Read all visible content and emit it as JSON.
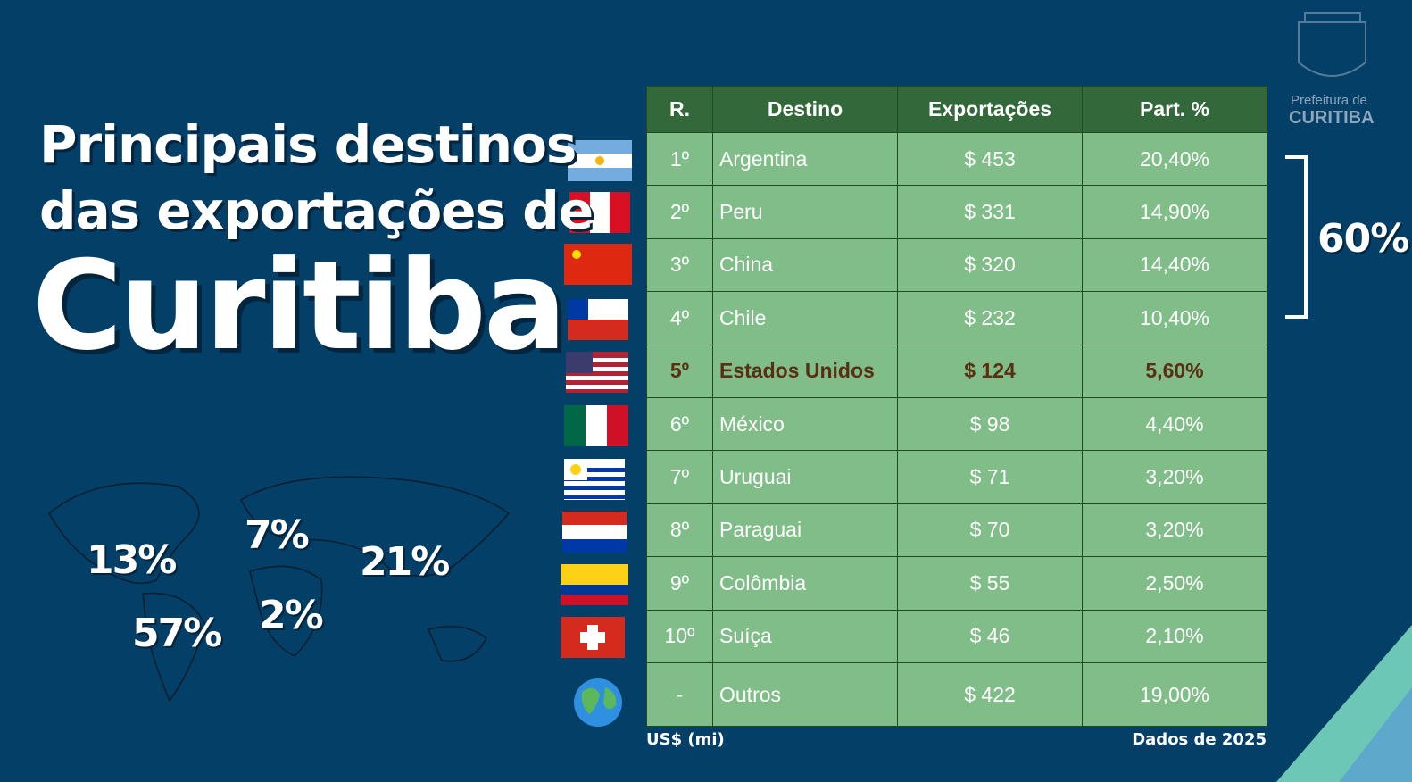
{
  "title": {
    "line1": "Principais destinos",
    "line2": "das exportações de",
    "city": "Curitiba"
  },
  "logo": {
    "line1": "Prefeitura de",
    "line2": "CURITIBA"
  },
  "map_labels": [
    "13%",
    "7%",
    "21%",
    "57%",
    "2%"
  ],
  "bracket_label": "60%",
  "table": {
    "headers": [
      "R.",
      "Destino",
      "Exportações",
      "Part. %"
    ],
    "rows": [
      [
        "1º",
        "Argentina",
        "$ 453",
        "20,40%"
      ],
      [
        "2º",
        "Peru",
        "$ 331",
        "14,90%"
      ],
      [
        "3º",
        "China",
        "$ 320",
        "14,40%"
      ],
      [
        "4º",
        "Chile",
        "$ 232",
        "10,40%"
      ],
      [
        "5º",
        "Estados Unidos",
        "$ 124",
        "5,60%"
      ],
      [
        "6º",
        "México",
        "$ 98",
        "4,40%"
      ],
      [
        "7º",
        "Uruguai",
        "$ 71",
        "3,20%"
      ],
      [
        "8º",
        "Paraguai",
        "$ 70",
        "3,20%"
      ],
      [
        "9º",
        "Colômbia",
        "$ 55",
        "2,50%"
      ],
      [
        "10º",
        "Suíça",
        "$ 46",
        "2,10%"
      ],
      [
        "-",
        "Outros",
        "$ 422",
        "19,00%"
      ]
    ]
  },
  "footer": {
    "unit": "US$ (mi)",
    "source": "Dados de 2025"
  }
}
